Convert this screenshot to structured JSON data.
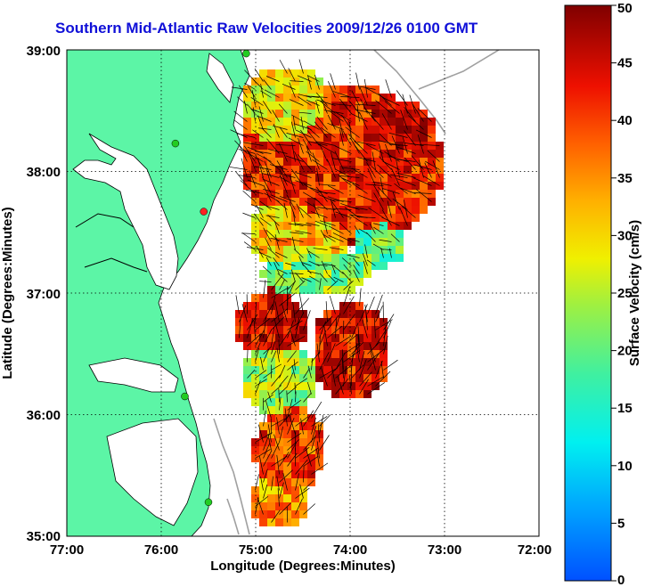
{
  "title": "Southern Mid-Atlantic Raw Velocities 2009/12/26 0100 GMT",
  "x_axis": {
    "label": "Longitude (Degrees:Minutes)",
    "ticks": [
      "77:00",
      "76:00",
      "75:00",
      "74:00",
      "73:00",
      "72:00"
    ]
  },
  "y_axis": {
    "label": "Latitude (Degrees:Minutes)",
    "ticks": [
      "39:00",
      "38:00",
      "37:00",
      "36:00",
      "35:00"
    ]
  },
  "colorbar": {
    "label": "Surface Velocity (cm/s)",
    "ticks": [
      "50",
      "45",
      "40",
      "35",
      "30",
      "25",
      "20",
      "15",
      "10",
      "5",
      "0"
    ],
    "min": 0,
    "max": 50
  },
  "colors": {
    "land": "#5cf5a6",
    "title": "#1010d8",
    "bathymetry": "#a0a0a0",
    "vectors": "#000000",
    "stations": "#22cc22",
    "station_alert": "#ff2222"
  },
  "map_extent": {
    "lon": [
      -77,
      -72
    ],
    "lat": [
      35,
      39
    ]
  },
  "stations": [
    {
      "lon": -75.1,
      "lat": 38.97,
      "status": "ok"
    },
    {
      "lon": -75.85,
      "lat": 38.23,
      "status": "ok"
    },
    {
      "lon": -75.55,
      "lat": 37.67,
      "status": "alert"
    },
    {
      "lon": -75.75,
      "lat": 36.15,
      "status": "ok"
    },
    {
      "lon": -75.5,
      "lat": 35.28,
      "status": "ok"
    }
  ]
}
